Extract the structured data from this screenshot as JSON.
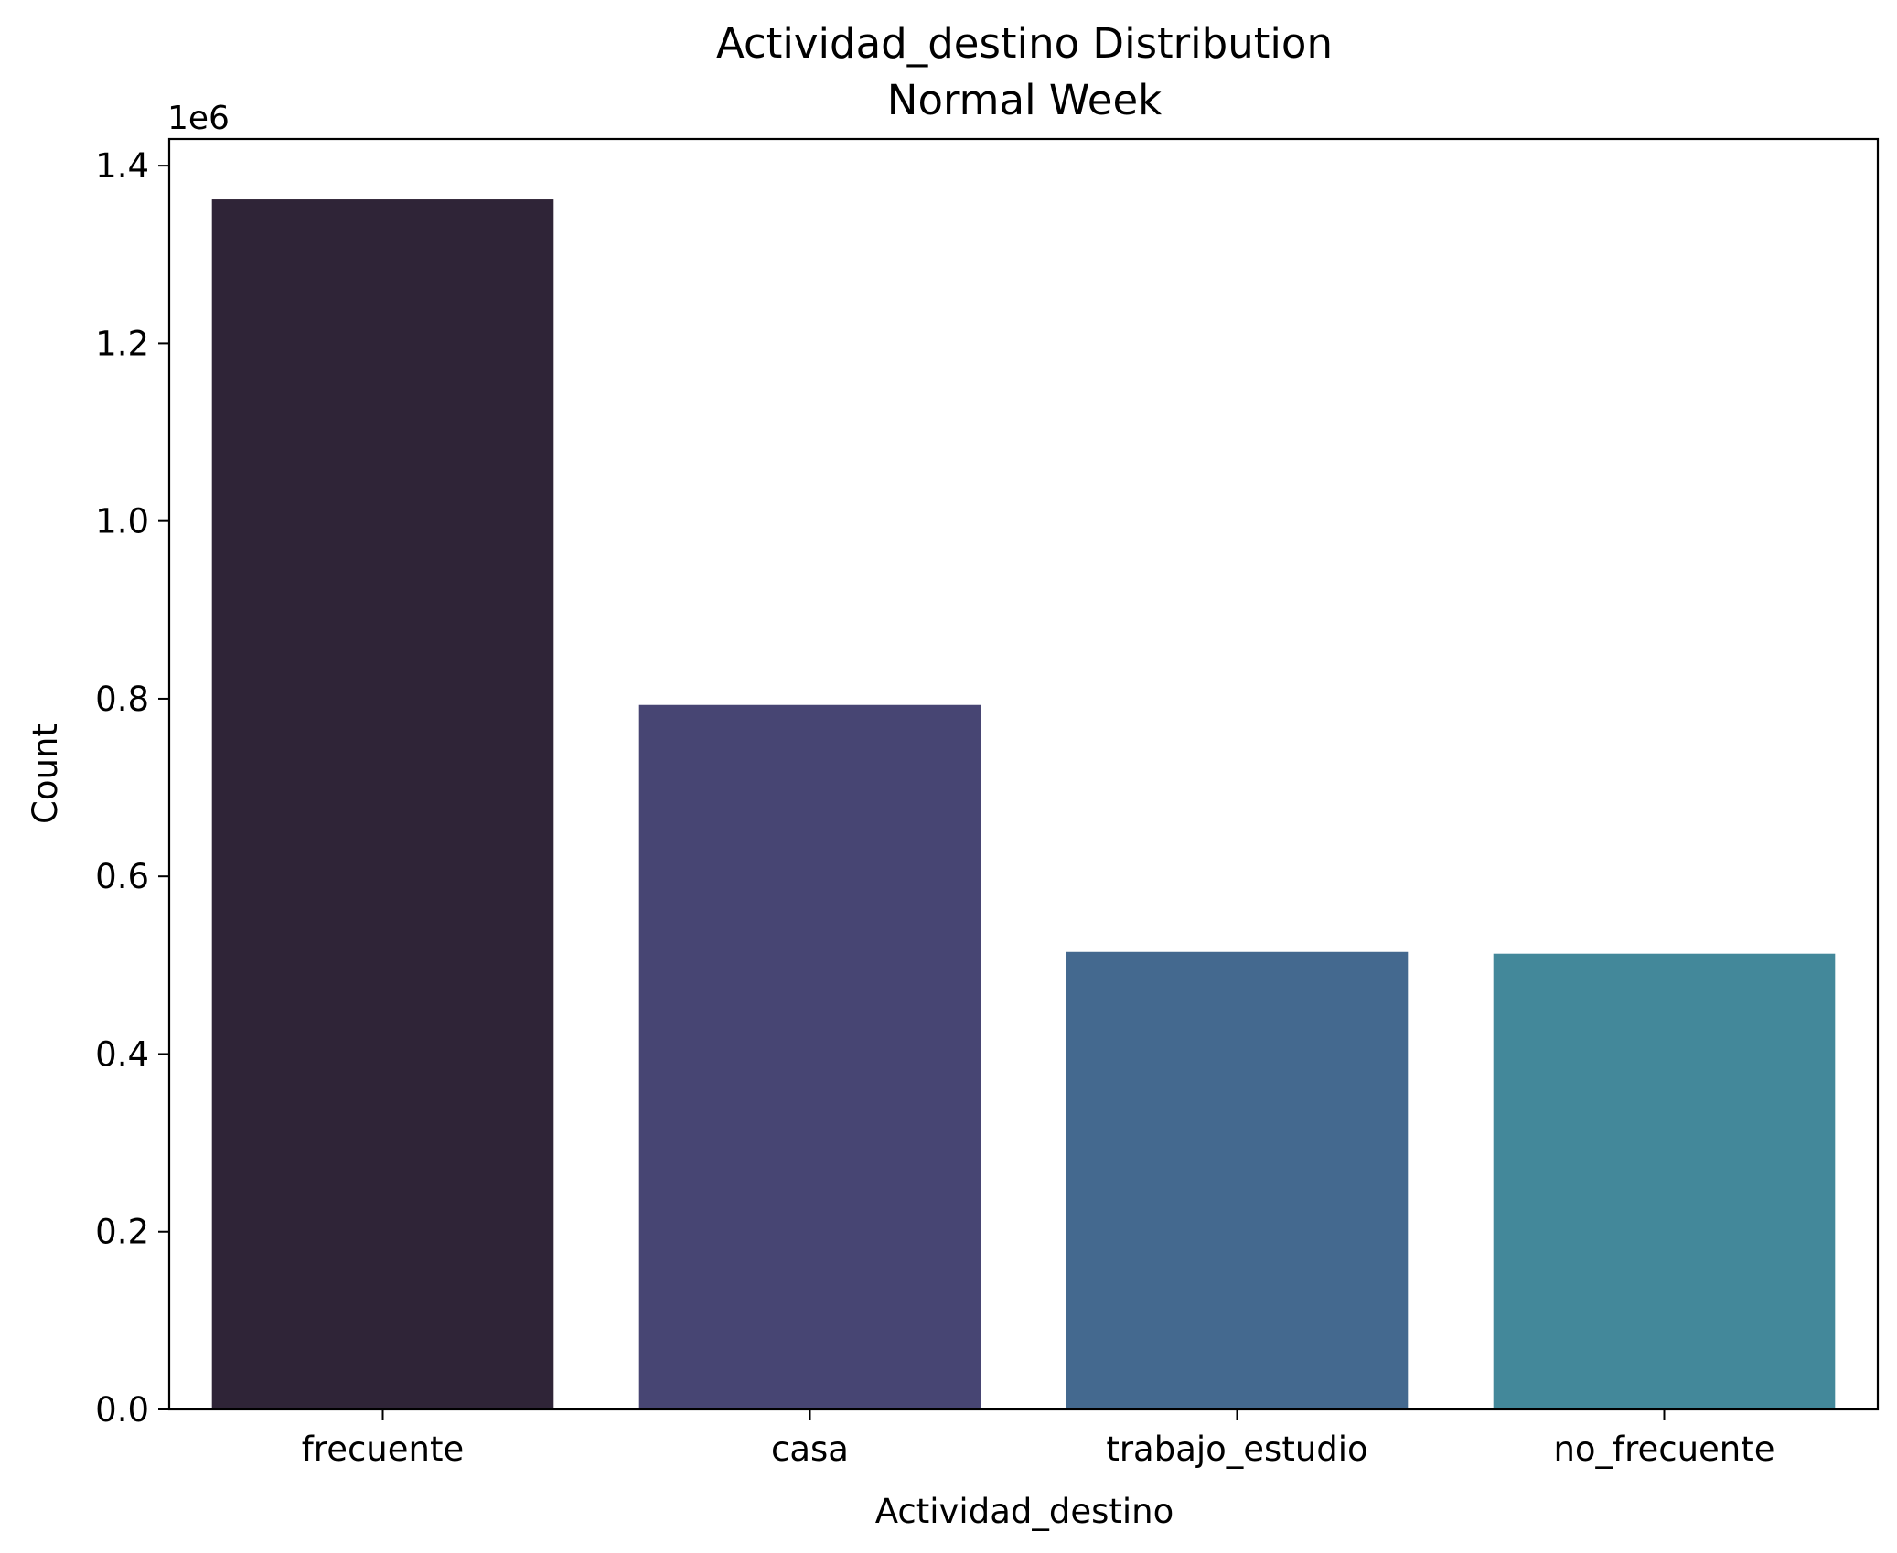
{
  "chart_data": {
    "type": "bar",
    "title": "Actividad_destino Distribution",
    "subtitle": "Normal Week",
    "xlabel": "Actividad_destino",
    "ylabel": "Count",
    "y_offset_label": "1e6",
    "categories": [
      "frecuente",
      "casa",
      "trabajo_estudio",
      "no_frecuente"
    ],
    "values": [
      1362000,
      793000,
      515000,
      513000
    ],
    "colors": [
      "#2f2437",
      "#474573",
      "#44698f",
      "#43889a"
    ],
    "ylim": [
      0,
      1430000
    ],
    "yticks": [
      0,
      200000,
      400000,
      600000,
      800000,
      1000000,
      1200000,
      1400000
    ],
    "ytick_labels": [
      "0.0",
      "0.2",
      "0.4",
      "0.6",
      "0.8",
      "1.0",
      "1.2",
      "1.4"
    ],
    "grid": false,
    "legend": "none"
  }
}
